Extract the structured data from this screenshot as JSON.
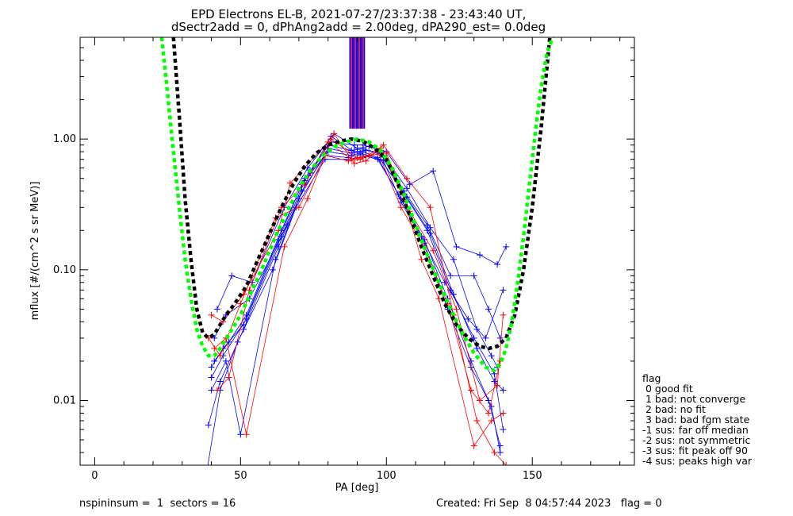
{
  "chart_data": {
    "type": "line",
    "title_line1": "EPD Electrons EL-B, 2021-07-27/23:37:38 - 23:43:40 UT,",
    "title_line2": "dSectr2add = 0, dPhAng2add = 2.00deg, dPA290_est=    0.0deg",
    "xlabel": "PA [deg]",
    "ylabel": "mflux [#/(cm^2 s sr MeV)]",
    "xlim": [
      -5,
      185
    ],
    "ylim": [
      0.0032,
      6.0
    ],
    "yscale": "log",
    "x_ticks": [
      0,
      50,
      100,
      150
    ],
    "y_ticks": [
      {
        "value": 0.01,
        "label": "0.01"
      },
      {
        "value": 0.1,
        "label": "0.10"
      },
      {
        "value": 1.0,
        "label": "1.00"
      }
    ],
    "fits": [
      {
        "name": "",
        "color": "#000000",
        "x": [
          27,
          29,
          31,
          33,
          35,
          37,
          39,
          41,
          43,
          45,
          48,
          52,
          56,
          60,
          64,
          68,
          72,
          76,
          80,
          84,
          88,
          92,
          96,
          100,
          104,
          108,
          112,
          116,
          120,
          124,
          128,
          132,
          135,
          138,
          141,
          144,
          147,
          150,
          153,
          156
        ],
        "y": [
          6.0,
          1.5,
          0.35,
          0.12,
          0.05,
          0.033,
          0.03,
          0.032,
          0.038,
          0.045,
          0.055,
          0.075,
          0.12,
          0.19,
          0.3,
          0.45,
          0.62,
          0.78,
          0.9,
          0.96,
          1.0,
          0.96,
          0.85,
          0.7,
          0.45,
          0.26,
          0.15,
          0.09,
          0.055,
          0.038,
          0.03,
          0.026,
          0.025,
          0.026,
          0.03,
          0.045,
          0.1,
          0.3,
          1.2,
          6.0
        ]
      },
      {
        "name": "",
        "color": "#00ff00",
        "x": [
          23,
          25,
          27,
          29,
          31,
          33,
          35,
          37,
          39,
          41,
          43,
          46,
          50,
          54,
          58,
          62,
          66,
          70,
          74,
          78,
          82,
          86,
          90,
          94,
          98,
          102,
          106,
          110,
          114,
          118,
          122,
          126,
          130,
          134,
          137,
          139,
          141,
          143,
          145,
          147,
          149,
          151,
          153,
          155,
          157
        ],
        "y": [
          6.0,
          2.2,
          0.8,
          0.3,
          0.12,
          0.06,
          0.035,
          0.026,
          0.022,
          0.022,
          0.025,
          0.032,
          0.045,
          0.07,
          0.11,
          0.18,
          0.28,
          0.42,
          0.58,
          0.74,
          0.87,
          0.95,
          1.0,
          0.95,
          0.82,
          0.6,
          0.38,
          0.22,
          0.13,
          0.08,
          0.05,
          0.033,
          0.023,
          0.018,
          0.017,
          0.019,
          0.025,
          0.04,
          0.08,
          0.18,
          0.45,
          1.1,
          2.5,
          4.5,
          6.0
        ]
      }
    ],
    "series": [
      {
        "name": "",
        "color": "#0000ff",
        "x": [
          40,
          44,
          52,
          64,
          72,
          80,
          88,
          92,
          98,
          106,
          114,
          122,
          130,
          137,
          140
        ],
        "y": [
          0.015,
          0.022,
          0.042,
          0.18,
          0.48,
          0.9,
          0.82,
          0.84,
          0.78,
          0.38,
          0.2,
          0.07,
          0.03,
          0.016,
          0.006
        ]
      },
      {
        "name": "",
        "color": "#0000ff",
        "x": [
          41,
          45,
          53,
          66,
          74,
          81,
          89,
          93,
          99,
          107,
          115,
          123,
          131,
          136,
          138
        ],
        "y": [
          0.03,
          0.045,
          0.06,
          0.22,
          0.55,
          1.05,
          0.8,
          0.82,
          0.75,
          0.42,
          0.21,
          0.12,
          0.035,
          0.022,
          0.018
        ]
      },
      {
        "name": "",
        "color": "#0000ff",
        "x": [
          39,
          43,
          51,
          63,
          71,
          79,
          87,
          91,
          97,
          105,
          113,
          121,
          129,
          135,
          139
        ],
        "y": [
          0.0065,
          0.014,
          0.035,
          0.15,
          0.4,
          0.75,
          0.72,
          0.76,
          0.7,
          0.35,
          0.17,
          0.06,
          0.02,
          0.01,
          0.0045
        ]
      },
      {
        "name": "",
        "color": "#0000ff",
        "x": [
          42,
          47,
          54,
          65,
          73,
          82,
          90,
          94,
          100,
          108,
          116,
          124,
          132,
          138,
          141
        ],
        "y": [
          0.05,
          0.09,
          0.08,
          0.3,
          0.6,
          1.1,
          0.85,
          0.88,
          0.8,
          0.45,
          0.57,
          0.15,
          0.13,
          0.11,
          0.15
        ]
      },
      {
        "name": "",
        "color": "#0000ff",
        "x": [
          40,
          45,
          50,
          62,
          70,
          80,
          88,
          92,
          97,
          104,
          112,
          120,
          128,
          134,
          140
        ],
        "y": [
          0.012,
          0.02,
          0.0055,
          0.12,
          0.35,
          0.85,
          0.78,
          0.8,
          0.72,
          0.38,
          0.18,
          0.08,
          0.042,
          0.03,
          0.07
        ]
      },
      {
        "name": "",
        "color": "#0000ff",
        "x": [
          38,
          43,
          49,
          61,
          69,
          79,
          87,
          93,
          99,
          105,
          113,
          121,
          129,
          136,
          139
        ],
        "y": [
          0.0025,
          0.012,
          0.028,
          0.1,
          0.3,
          0.7,
          0.7,
          0.74,
          0.68,
          0.33,
          0.16,
          0.05,
          0.018,
          0.009,
          0.004
        ]
      },
      {
        "name": "",
        "color": "#0000ff",
        "x": [
          41,
          46,
          52,
          64,
          72,
          81,
          89,
          92,
          98,
          106,
          114,
          122,
          130,
          135,
          139
        ],
        "y": [
          0.02,
          0.028,
          0.045,
          0.2,
          0.5,
          0.95,
          0.9,
          0.9,
          0.82,
          0.4,
          0.22,
          0.09,
          0.09,
          0.05,
          0.03
        ]
      },
      {
        "name": "",
        "color": "#0000ff",
        "x": [
          40,
          44,
          51,
          63,
          71,
          80,
          88,
          91,
          98,
          107,
          115,
          123,
          131,
          137,
          140
        ],
        "y": [
          0.018,
          0.025,
          0.038,
          0.17,
          0.45,
          0.8,
          0.75,
          0.78,
          0.7,
          0.36,
          0.19,
          0.065,
          0.025,
          0.014,
          0.012
        ]
      },
      {
        "name": "",
        "color": "#ff0000",
        "x": [
          40,
          44,
          51,
          63,
          67,
          80,
          88,
          92,
          98,
          106,
          112,
          118,
          130,
          136,
          140
        ],
        "y": [
          0.045,
          0.04,
          0.065,
          0.2,
          0.46,
          0.95,
          0.7,
          0.72,
          0.85,
          0.35,
          0.12,
          0.06,
          0.0045,
          0.007,
          0.008
        ]
      },
      {
        "name": "",
        "color": "#ff0000",
        "x": [
          41,
          45,
          52,
          65,
          73,
          82,
          89,
          93,
          99,
          107,
          115,
          123,
          131,
          137,
          141
        ],
        "y": [
          0.025,
          0.03,
          0.0055,
          0.15,
          0.35,
          1.1,
          0.65,
          0.68,
          0.9,
          0.5,
          0.3,
          0.045,
          0.007,
          0.004,
          0.0032
        ]
      },
      {
        "name": "",
        "color": "#ff0000",
        "x": [
          39,
          43,
          50,
          62,
          70,
          79,
          87,
          91,
          97,
          105,
          113,
          121,
          129,
          135,
          139
        ],
        "y": [
          0.03,
          0.022,
          0.055,
          0.25,
          0.3,
          0.75,
          0.68,
          0.7,
          0.8,
          0.3,
          0.15,
          0.055,
          0.012,
          0.008,
          0.02
        ]
      },
      {
        "name": "",
        "color": "#ff0000",
        "x": [
          42,
          46,
          53,
          64,
          72,
          81,
          90,
          94,
          100,
          108,
          116,
          124,
          132,
          138,
          140
        ],
        "y": [
          0.012,
          0.015,
          0.07,
          0.3,
          0.45,
          1.0,
          0.72,
          0.75,
          0.78,
          0.28,
          0.14,
          0.05,
          0.01,
          0.013,
          0.045
        ]
      }
    ],
    "grid": false
  },
  "footer": {
    "left": "nspininsum =  1  sectors = 16",
    "right": "Created: Fri Sep  8 04:57:44 2023   flag = 0"
  },
  "flag_legend": [
    "flag",
    " 0 good fit",
    " 1 bad: not converge",
    " 2 bad: no fit",
    " 3 bad: bad fgm state",
    "-1 sus: far off median",
    "-2 sus: not symmetric",
    "-3 sus: fit peak off 90",
    "-4 sus: peaks high var"
  ]
}
